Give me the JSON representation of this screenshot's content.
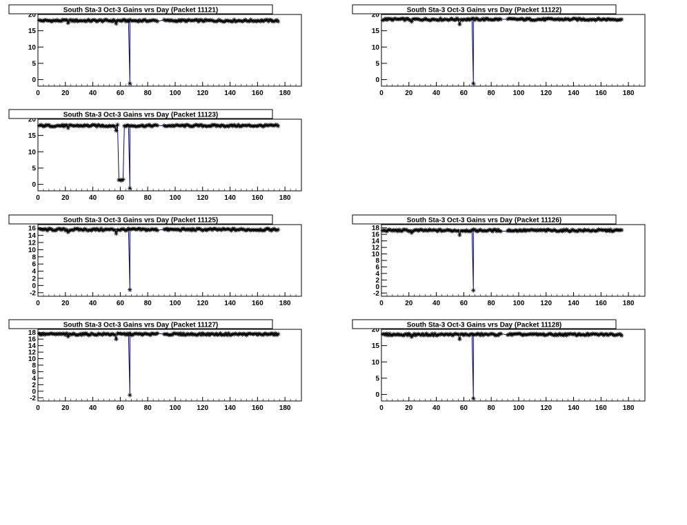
{
  "page": {
    "background": "#ffffff"
  },
  "colors": {
    "line": "#00008b",
    "marker": "#000000",
    "axis": "#000000"
  },
  "chart_data": [
    {
      "type": "line",
      "title": "South Sta-3 Oct-3 Gains vrs Day (Packet 11121)",
      "xlim": [
        0,
        192
      ],
      "ylim": [
        -2,
        20
      ],
      "xticks": [
        0,
        20,
        40,
        60,
        80,
        100,
        120,
        140,
        160,
        180
      ],
      "yticks": [
        0,
        5,
        10,
        15,
        20
      ],
      "series": [
        {
          "baseline": 18.1,
          "x_range": [
            1,
            175
          ],
          "gap": [
            88,
            91
          ],
          "dips": [
            {
              "x": 57,
              "y": 17.2
            }
          ],
          "drop": {
            "x": 67,
            "y": -1.2
          }
        }
      ]
    },
    {
      "type": "line",
      "title": "South Sta-3 Oct-3 Gains vrs Day (Packet 11122)",
      "xlim": [
        0,
        192
      ],
      "ylim": [
        -2,
        20
      ],
      "xticks": [
        0,
        20,
        40,
        60,
        80,
        100,
        120,
        140,
        160,
        180
      ],
      "yticks": [
        0,
        5,
        10,
        15,
        20
      ],
      "series": [
        {
          "baseline": 18.5,
          "x_range": [
            1,
            175
          ],
          "gap": [
            88,
            91
          ],
          "dips": [
            {
              "x": 57,
              "y": 17.0
            }
          ],
          "drop": {
            "x": 67,
            "y": -1.2
          }
        }
      ]
    },
    {
      "type": "line",
      "title": "South Sta-3 Oct-3 Gains vrs Day (Packet 11123)",
      "xlim": [
        0,
        192
      ],
      "ylim": [
        -2,
        20
      ],
      "xticks": [
        0,
        20,
        40,
        60,
        80,
        100,
        120,
        140,
        160,
        180
      ],
      "yticks": [
        0,
        5,
        10,
        15,
        20
      ],
      "series": [
        {
          "baseline": 18.0,
          "x_range": [
            1,
            175
          ],
          "gap": [
            88,
            91
          ],
          "dips": [
            {
              "x": 57,
              "y": 16.5
            }
          ],
          "low_segment": {
            "x_from": 59,
            "x_to": 62,
            "y": 1.3
          },
          "drop": {
            "x": 67,
            "y": -1.2
          }
        }
      ]
    },
    {
      "type": "line",
      "title": "South Sta-3 Oct-3 Gains vrs Day (Packet 11125)",
      "xlim": [
        0,
        192
      ],
      "ylim": [
        -3,
        17
      ],
      "xticks": [
        0,
        20,
        40,
        60,
        80,
        100,
        120,
        140,
        160,
        180
      ],
      "yticks": [
        -2,
        0,
        2,
        4,
        6,
        8,
        10,
        12,
        14,
        16
      ],
      "series": [
        {
          "baseline": 15.6,
          "x_range": [
            1,
            175
          ],
          "gap": [
            88,
            91
          ],
          "dips": [
            {
              "x": 57,
              "y": 14.5
            }
          ],
          "drop": {
            "x": 67,
            "y": -1.2
          }
        }
      ]
    },
    {
      "type": "line",
      "title": "South Sta-3 Oct-3 Gains vrs Day (Packet 11126)",
      "xlim": [
        0,
        192
      ],
      "ylim": [
        -3,
        19
      ],
      "xticks": [
        0,
        20,
        40,
        60,
        80,
        100,
        120,
        140,
        160,
        180
      ],
      "yticks": [
        -2,
        0,
        2,
        4,
        6,
        8,
        10,
        12,
        14,
        16,
        18
      ],
      "series": [
        {
          "baseline": 17.2,
          "x_range": [
            1,
            175
          ],
          "gap": [
            88,
            91
          ],
          "dips": [
            {
              "x": 57,
              "y": 15.8
            }
          ],
          "drop": {
            "x": 67,
            "y": -1.2
          }
        }
      ]
    },
    {
      "type": "line",
      "title": "South Sta-3 Oct-3 Gains vrs Day (Packet 11127)",
      "xlim": [
        0,
        192
      ],
      "ylim": [
        -3,
        19
      ],
      "xticks": [
        0,
        20,
        40,
        60,
        80,
        100,
        120,
        140,
        160,
        180
      ],
      "yticks": [
        -2,
        0,
        2,
        4,
        6,
        8,
        10,
        12,
        14,
        16,
        18
      ],
      "series": [
        {
          "baseline": 17.5,
          "x_range": [
            1,
            175
          ],
          "gap": [
            88,
            91
          ],
          "dips": [
            {
              "x": 57,
              "y": 16.0
            }
          ],
          "drop": {
            "x": 67,
            "y": -1.2
          }
        }
      ]
    },
    {
      "type": "line",
      "title": "South Sta-3 Oct-3 Gains vrs Day (Packet 11128)",
      "xlim": [
        0,
        192
      ],
      "ylim": [
        -2,
        20
      ],
      "xticks": [
        0,
        20,
        40,
        60,
        80,
        100,
        120,
        140,
        160,
        180
      ],
      "yticks": [
        0,
        5,
        10,
        15,
        20
      ],
      "series": [
        {
          "baseline": 18.4,
          "x_range": [
            1,
            175
          ],
          "gap": [
            88,
            91
          ],
          "dips": [
            {
              "x": 57,
              "y": 17.0
            }
          ],
          "drop": {
            "x": 67,
            "y": -1.2
          }
        }
      ]
    }
  ]
}
